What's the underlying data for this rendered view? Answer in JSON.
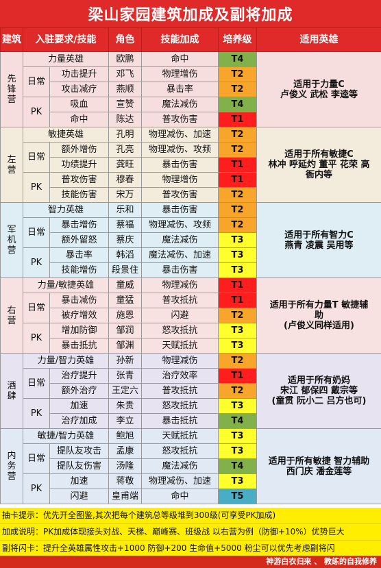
{
  "title": "梁山家园建筑加成及副将加成",
  "headers": {
    "building": "建筑",
    "requirement": "入驻要求/技能",
    "role": "角色",
    "skill": "技能加成",
    "level": "培养级",
    "heroes": "适用英雄"
  },
  "camps": [
    {
      "name": "先锋营",
      "hero_lines": [
        "适用于力量C",
        "卢俊义 武松 李逵等"
      ],
      "rows": [
        {
          "req": "力量英雄",
          "role": "欧鹏",
          "skill": "命中",
          "tier": "T4"
        },
        {
          "req": "功击提升",
          "role": "邓飞",
          "skill": "物理增伤",
          "tier": "T2"
        },
        {
          "req": "攻击减疗",
          "role": "燕顺",
          "skill": "暴击率",
          "tier": "T2"
        },
        {
          "req": "吸血",
          "role": "宣赞",
          "skill": "魔法减伤",
          "tier": "T4"
        },
        {
          "req": "命中",
          "role": "陈达",
          "skill": "普攻伤害",
          "tier": "T1"
        }
      ]
    },
    {
      "name": "左营",
      "hero_lines": [
        "适用于所有敏捷C",
        "林冲 呼延灼 董平 花荣 高",
        "衙内等"
      ],
      "rows": [
        {
          "req": "敏捷英雄",
          "role": "孔明",
          "skill": "物理减伤、加速",
          "tier": "T2"
        },
        {
          "req": "额外增伤",
          "role": "孔亮",
          "skill": "物理减伤、攻频",
          "tier": "T2"
        },
        {
          "req": "功绩提升",
          "role": "龚旺",
          "skill": "暴击伤害",
          "tier": "T1"
        },
        {
          "req": "普攻伤害",
          "role": "穆春",
          "skill": "物理增伤",
          "tier": "T1"
        },
        {
          "req": "技能伤害",
          "role": "宋万",
          "skill": "普攻伤害",
          "tier": "T2"
        }
      ]
    },
    {
      "name": "军机营",
      "hero_lines": [
        "适用于所有智力C",
        "燕青 凌震 吴用等"
      ],
      "rows": [
        {
          "req": "智力英雄",
          "role": "乐和",
          "skill": "暴击伤害",
          "tier": "T2"
        },
        {
          "req": "暴击增伤",
          "role": "蔡福",
          "skill": "物理减伤、攻频",
          "tier": "T2"
        },
        {
          "req": "额外留怒",
          "role": "蔡庆",
          "skill": "魔法减伤",
          "tier": "T3"
        },
        {
          "req": "暴击率",
          "role": "韩滔",
          "skill": "魔法减伤、加速",
          "tier": "T3"
        },
        {
          "req": "技能增伤",
          "role": "段景住",
          "skill": "暴击伤害",
          "tier": "T3"
        }
      ]
    },
    {
      "name": "右营",
      "hero_lines": [
        "适用于所有力量T 敏捷辅",
        "助",
        "(卢俊义同样适用)"
      ],
      "rows": [
        {
          "req": "力量/敏捷英雄",
          "role": "童威",
          "skill": "物理减伤",
          "tier": "T1"
        },
        {
          "req": "暴击减伤",
          "role": "童猛",
          "skill": "普攻抵抗",
          "tier": "T1"
        },
        {
          "req": "被疗增效",
          "role": "施恩",
          "skill": "闪避",
          "tier": "T2"
        },
        {
          "req": "增加防御",
          "role": "邹润",
          "skill": "怒攻抵抗",
          "tier": "T3"
        },
        {
          "req": "暴击抵抗",
          "role": "邹渊",
          "skill": "天赋抵抗",
          "tier": "T3"
        }
      ]
    },
    {
      "name": "酒肆",
      "hero_lines": [
        "适用于所有奶妈",
        "宋江 郁保四 戴宗等",
        "(童贯 阮小二 吕方也可)"
      ],
      "rows": [
        {
          "req": "力量/智力英雄",
          "role": "孙新",
          "skill": "物理减伤",
          "tier": "T2"
        },
        {
          "req": "治疗提升",
          "role": "张青",
          "skill": "治疗效率",
          "tier": "T1"
        },
        {
          "req": "额外治疗",
          "role": "王定六",
          "skill": "普攻抵抗",
          "tier": "T2"
        },
        {
          "req": "加速",
          "role": "朱贵",
          "skill": "怒攻抵抗",
          "tier": "T3"
        },
        {
          "req": "治疗加成",
          "role": "李立",
          "skill": "暴击抵抗",
          "tier": "T4"
        }
      ]
    },
    {
      "name": "内务营",
      "hero_lines": [
        "适用于所有敏捷 智力辅助",
        "西门庆 潘金莲等"
      ],
      "rows": [
        {
          "req": "敏捷/智力英雄",
          "role": "鲍旭",
          "skill": "天赋抵抗",
          "tier": "T3"
        },
        {
          "req": "提队友攻击",
          "role": "孟康",
          "skill": "怒攻抵抗",
          "tier": "T3"
        },
        {
          "req": "提队友伤害",
          "role": "汤隆",
          "skill": "魔法减伤",
          "tier": "T4"
        },
        {
          "req": "加速",
          "role": "蒋敬",
          "skill": "物理减伤、加速",
          "tier": "T3"
        },
        {
          "req": "闪避",
          "role": "皇甫端",
          "skill": "命中",
          "tier": "T5"
        }
      ]
    }
  ],
  "labels": {
    "daily": "日常",
    "pk": "PK"
  },
  "notes": [
    "抽卡提示：优先开全图鉴,其次把每个建筑总等级堆到300级(可享受PK加成)",
    "加成说明：PK加成体现接头对战、天梯、巅峰赛、班级战  以右营为例（防御+10%）优势巨大",
    "副将闪卡：提升全英雄属性攻击+1000 防御+200 生命值+5000   粉尘可以优先考虑副将闪"
  ],
  "footer": "神游白衣归来 、 教练的自我修养",
  "colors": {
    "title_red": "#e02a2a",
    "t1": "#ff1e1e",
    "t2": "#f7a62b",
    "t3": "#ffff2e",
    "t4": "#82b04a",
    "t5": "#49adc6",
    "notes_yellow": "#ffee00"
  }
}
